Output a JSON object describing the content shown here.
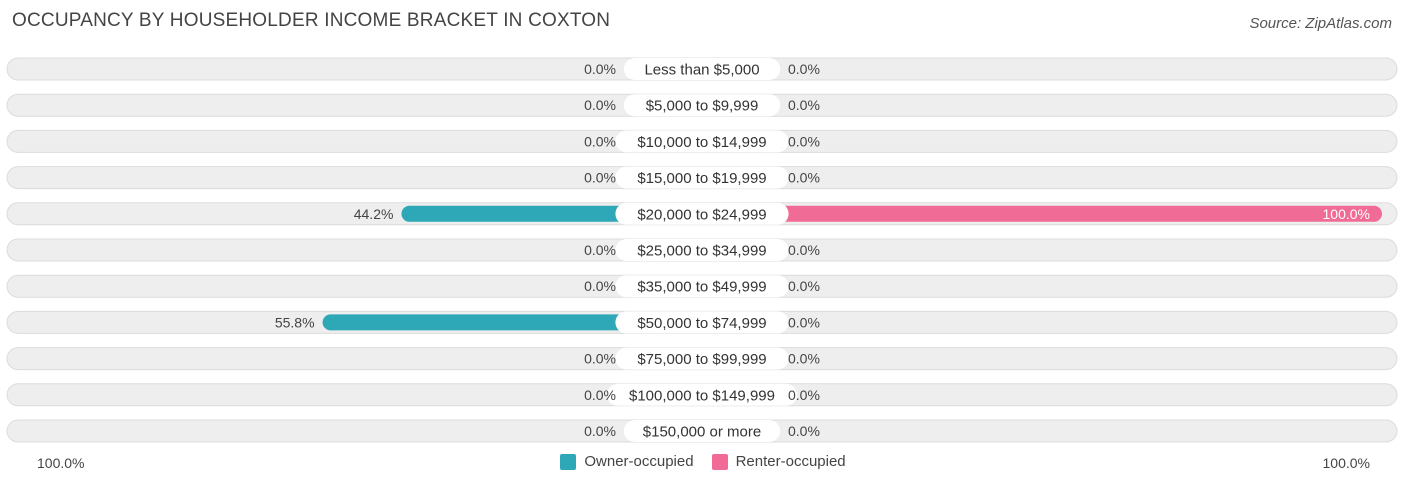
{
  "title": "OCCUPANCY BY HOUSEHOLDER INCOME BRACKET IN COXTON",
  "source": "Source: ZipAtlas.com",
  "colors": {
    "owner_strong": "#2ea8b7",
    "owner_light": "#87cbd5",
    "renter_strong": "#f06b96",
    "renter_light": "#f6a9c3",
    "row_bg": "#eeeeee",
    "row_border": "#dcdcdc"
  },
  "axis": {
    "left_label": "100.0%",
    "right_label": "100.0%"
  },
  "legend": [
    {
      "label": "Owner-occupied",
      "color": "#2ea8b7"
    },
    {
      "label": "Renter-occupied",
      "color": "#f06b96"
    }
  ],
  "chart_data": {
    "type": "bar",
    "orientation": "horizontal-diverging",
    "title": "OCCUPANCY BY HOUSEHOLDER INCOME BRACKET IN COXTON",
    "categories": [
      "Less than $5,000",
      "$5,000 to $9,999",
      "$10,000 to $14,999",
      "$15,000 to $19,999",
      "$20,000 to $24,999",
      "$25,000 to $34,999",
      "$35,000 to $49,999",
      "$50,000 to $74,999",
      "$75,000 to $99,999",
      "$100,000 to $149,999",
      "$150,000 or more"
    ],
    "series": [
      {
        "name": "Owner-occupied",
        "values": [
          0.0,
          0.0,
          0.0,
          0.0,
          44.2,
          0.0,
          0.0,
          55.8,
          0.0,
          0.0,
          0.0
        ],
        "labels": [
          "0.0%",
          "0.0%",
          "0.0%",
          "0.0%",
          "44.2%",
          "0.0%",
          "0.0%",
          "55.8%",
          "0.0%",
          "0.0%",
          "0.0%"
        ]
      },
      {
        "name": "Renter-occupied",
        "values": [
          0.0,
          0.0,
          0.0,
          0.0,
          100.0,
          0.0,
          0.0,
          0.0,
          0.0,
          0.0,
          0.0
        ],
        "labels": [
          "0.0%",
          "0.0%",
          "0.0%",
          "0.0%",
          "100.0%",
          "0.0%",
          "0.0%",
          "0.0%",
          "0.0%",
          "0.0%",
          "0.0%"
        ]
      }
    ],
    "xlim": [
      -100,
      100
    ],
    "unit": "%"
  }
}
